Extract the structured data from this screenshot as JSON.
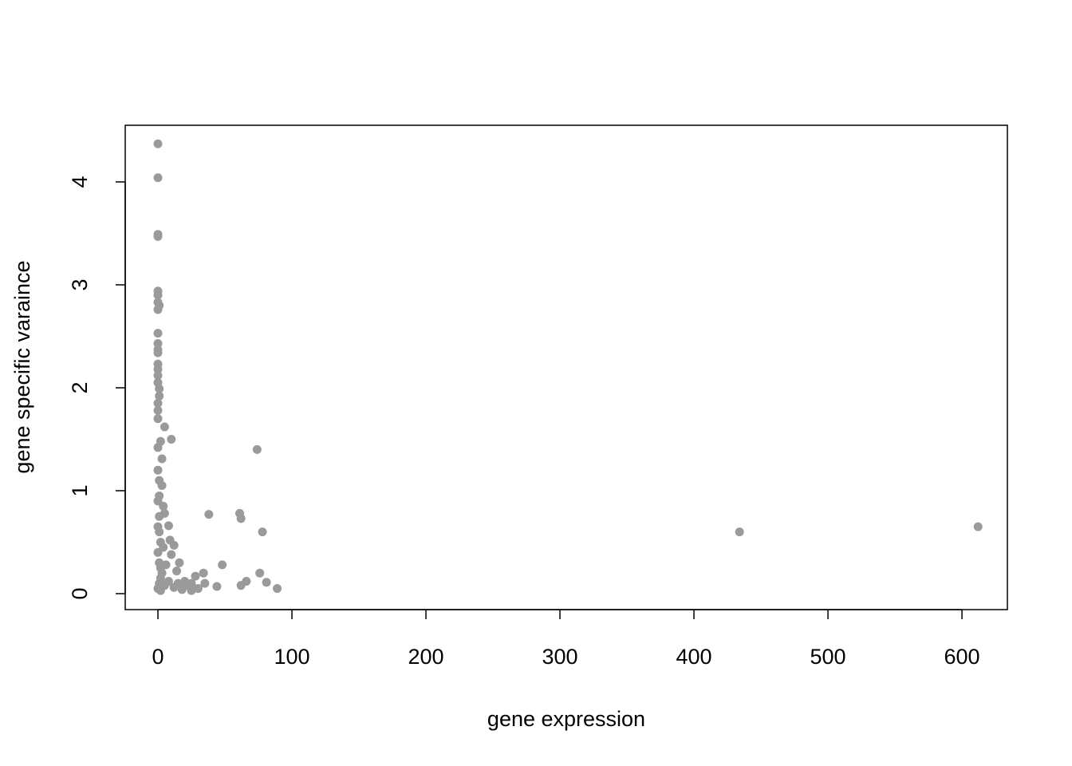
{
  "chart_data": {
    "type": "scatter",
    "x_label": "gene expression",
    "y_label": "gene specific varaince",
    "color": "#9a9a9a",
    "xlim": [
      -24.4,
      633.9
    ],
    "xticks": [
      0,
      100,
      200,
      300,
      400,
      500,
      600
    ],
    "ylim": [
      -0.155,
      4.55
    ],
    "yticks": [
      0,
      1,
      2,
      3,
      4
    ],
    "x": [
      0,
      0,
      0,
      0,
      0,
      0,
      0,
      1,
      0,
      0,
      0,
      0,
      0,
      0,
      0,
      0,
      0,
      1,
      1,
      0,
      0,
      0,
      5,
      10,
      2,
      0,
      3,
      0,
      1,
      3,
      1,
      4,
      5,
      8,
      1,
      9,
      12,
      4,
      10,
      16,
      6,
      2,
      14,
      20,
      25,
      28,
      30,
      34,
      35,
      38,
      44,
      48,
      61,
      62,
      62,
      66,
      74,
      76,
      78,
      81,
      89,
      434,
      612,
      0,
      1,
      2,
      3,
      1,
      0,
      2,
      0,
      1,
      0,
      2,
      5,
      8,
      12,
      15,
      18,
      22,
      25
    ],
    "values": [
      4.37,
      4.04,
      3.49,
      3.47,
      2.94,
      2.9,
      2.83,
      2.8,
      2.76,
      2.53,
      2.43,
      2.37,
      2.34,
      2.23,
      2.18,
      2.12,
      2.05,
      1.99,
      1.92,
      1.85,
      1.78,
      1.7,
      1.62,
      1.5,
      1.48,
      1.42,
      1.31,
      1.2,
      1.1,
      1.05,
      0.95,
      0.85,
      0.78,
      0.66,
      0.6,
      0.52,
      0.47,
      0.45,
      0.38,
      0.3,
      0.28,
      0.25,
      0.22,
      0.12,
      0.1,
      0.17,
      0.05,
      0.2,
      0.1,
      0.77,
      0.07,
      0.28,
      0.78,
      0.73,
      0.08,
      0.12,
      1.4,
      0.2,
      0.6,
      0.11,
      0.05,
      0.6,
      0.65,
      0.05,
      0.1,
      0.15,
      0.2,
      0.3,
      0.4,
      0.5,
      0.65,
      0.75,
      0.9,
      0.03,
      0.08,
      0.12,
      0.06,
      0.1,
      0.04,
      0.08,
      0.03
    ]
  }
}
